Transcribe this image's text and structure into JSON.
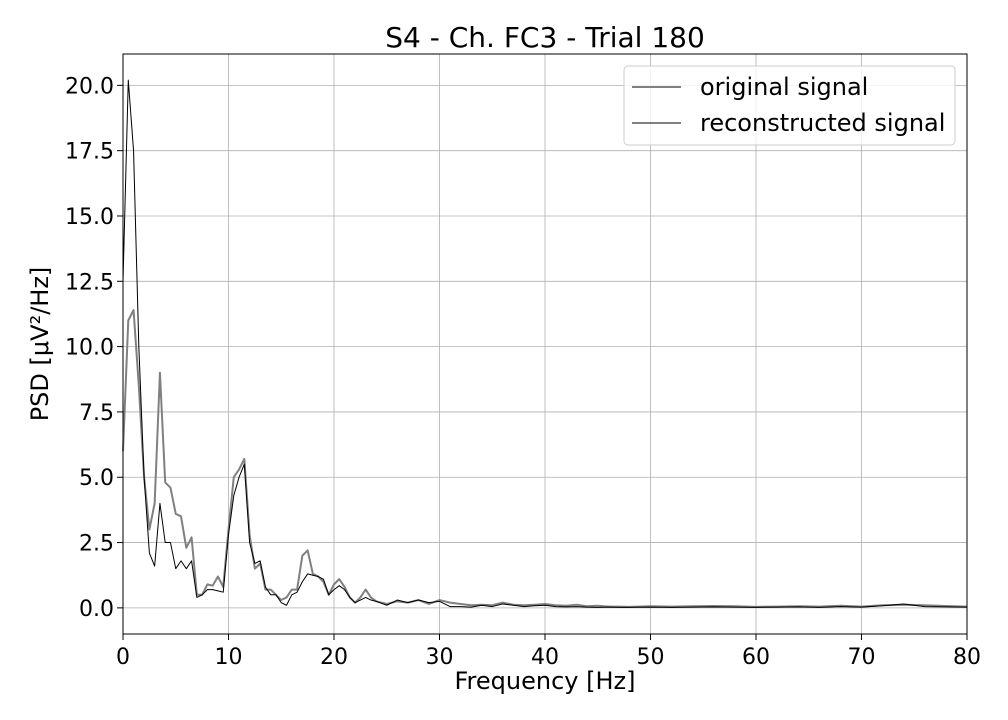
{
  "chart_data": {
    "type": "line",
    "title": "S4 - Ch. FC3 - Trial 180",
    "xlabel": "Frequency [Hz]",
    "ylabel": "PSD [μV²/Hz]",
    "xlim": [
      0,
      80
    ],
    "ylim": [
      -1.0,
      21.2
    ],
    "xticks": [
      0,
      10,
      20,
      30,
      40,
      50,
      60,
      70,
      80
    ],
    "xtick_labels": [
      "0",
      "10",
      "20",
      "30",
      "40",
      "50",
      "60",
      "70",
      "80"
    ],
    "yticks": [
      0.0,
      2.5,
      5.0,
      7.5,
      10.0,
      12.5,
      15.0,
      17.5,
      20.0
    ],
    "ytick_labels": [
      "0.0",
      "2.5",
      "5.0",
      "7.5",
      "10.0",
      "12.5",
      "15.0",
      "17.5",
      "20.0"
    ],
    "grid": true,
    "legend_position": "top-right",
    "series": [
      {
        "name": "original signal",
        "color": "#808080",
        "x": [
          0,
          0.5,
          1.0,
          1.5,
          2.0,
          2.5,
          3.0,
          3.5,
          4.0,
          4.5,
          5.0,
          5.5,
          6.0,
          6.5,
          7.0,
          7.5,
          8.0,
          8.5,
          9.0,
          9.5,
          10.0,
          10.5,
          11.0,
          11.5,
          12.0,
          12.5,
          13.0,
          13.5,
          14.0,
          14.5,
          15.0,
          15.5,
          16.0,
          16.5,
          17.0,
          17.5,
          18.0,
          18.5,
          19.0,
          19.5,
          20.0,
          20.5,
          21.0,
          21.5,
          22.0,
          22.5,
          23.0,
          23.5,
          24.0,
          25.0,
          26.0,
          27.0,
          28.0,
          29.0,
          30.0,
          31.0,
          32.0,
          33.0,
          34.0,
          35.0,
          36.0,
          37.0,
          38.0,
          39.0,
          40.0,
          41.0,
          42.0,
          43.0,
          44.0,
          45.0,
          46.0,
          47.0,
          48.0,
          50.0,
          52.0,
          54.0,
          56.0,
          58.0,
          60.0,
          62.0,
          64.0,
          66.0,
          68.0,
          70.0,
          72.0,
          74.0,
          76.0,
          78.0,
          80.0
        ],
        "values": [
          6.0,
          11.0,
          11.4,
          8.5,
          5.0,
          3.0,
          4.0,
          9.0,
          4.8,
          4.6,
          3.6,
          3.5,
          2.3,
          2.7,
          0.5,
          0.5,
          0.9,
          0.85,
          1.2,
          0.8,
          3.0,
          5.0,
          5.3,
          5.7,
          2.8,
          1.5,
          1.7,
          0.7,
          0.7,
          0.5,
          0.3,
          0.4,
          0.7,
          0.7,
          2.0,
          2.2,
          1.3,
          1.2,
          1.0,
          0.5,
          0.9,
          1.1,
          0.8,
          0.4,
          0.2,
          0.4,
          0.7,
          0.4,
          0.25,
          0.15,
          0.25,
          0.2,
          0.3,
          0.15,
          0.3,
          0.2,
          0.15,
          0.1,
          0.12,
          0.1,
          0.2,
          0.12,
          0.1,
          0.12,
          0.15,
          0.1,
          0.08,
          0.12,
          0.06,
          0.08,
          0.05,
          0.05,
          0.04,
          0.06,
          0.05,
          0.06,
          0.07,
          0.06,
          0.04,
          0.05,
          0.06,
          0.05,
          0.08,
          0.05,
          0.1,
          0.12,
          0.1,
          0.07,
          0.05
        ]
      },
      {
        "name": "reconstructed signal",
        "color": "#000000",
        "x": [
          0,
          0.5,
          1.0,
          1.5,
          2.0,
          2.5,
          3.0,
          3.5,
          4.0,
          4.5,
          5.0,
          5.5,
          6.0,
          6.5,
          7.0,
          7.5,
          8.0,
          8.5,
          9.0,
          9.5,
          10.0,
          10.5,
          11.0,
          11.5,
          12.0,
          12.5,
          13.0,
          13.5,
          14.0,
          14.5,
          15.0,
          15.5,
          16.0,
          16.5,
          17.0,
          17.5,
          18.0,
          18.5,
          19.0,
          19.5,
          20.0,
          20.5,
          21.0,
          21.5,
          22.0,
          22.5,
          23.0,
          23.5,
          24.0,
          25.0,
          26.0,
          27.0,
          28.0,
          29.0,
          30.0,
          31.0,
          32.0,
          33.0,
          34.0,
          35.0,
          36.0,
          37.0,
          38.0,
          39.0,
          40.0,
          41.0,
          42.0,
          43.0,
          44.0,
          45.0,
          46.0,
          47.0,
          48.0,
          50.0,
          52.0,
          54.0,
          56.0,
          58.0,
          60.0,
          62.0,
          64.0,
          66.0,
          68.0,
          70.0,
          72.0,
          74.0,
          76.0,
          78.0,
          80.0
        ],
        "values": [
          12.5,
          20.2,
          17.5,
          10.0,
          5.0,
          2.1,
          1.6,
          4.0,
          2.5,
          2.5,
          1.5,
          1.8,
          1.5,
          1.8,
          0.4,
          0.5,
          0.7,
          0.7,
          0.65,
          0.6,
          2.8,
          4.3,
          5.0,
          5.5,
          2.5,
          1.7,
          1.8,
          0.8,
          0.5,
          0.5,
          0.2,
          0.1,
          0.5,
          0.6,
          1.0,
          1.3,
          1.25,
          1.2,
          1.1,
          0.5,
          0.7,
          0.85,
          0.7,
          0.4,
          0.2,
          0.3,
          0.4,
          0.3,
          0.25,
          0.1,
          0.3,
          0.2,
          0.3,
          0.2,
          0.25,
          0.05,
          0.05,
          0.03,
          0.1,
          0.05,
          0.15,
          0.1,
          0.05,
          0.08,
          0.1,
          0.05,
          0.04,
          0.05,
          0.03,
          0.02,
          0.03,
          0.02,
          0.02,
          0.03,
          0.02,
          0.03,
          0.04,
          0.03,
          0.02,
          0.03,
          0.04,
          0.02,
          0.05,
          0.03,
          0.08,
          0.15,
          0.05,
          0.04,
          0.03
        ]
      }
    ]
  }
}
